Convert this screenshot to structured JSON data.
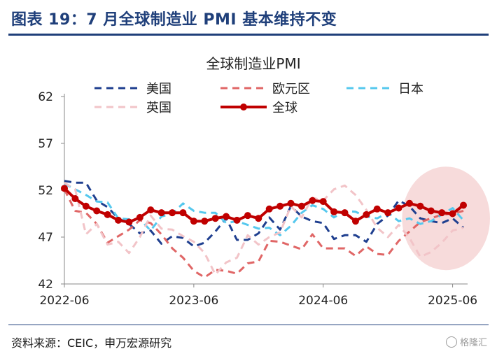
{
  "header": {
    "title": "图表 19：7 月全球制造业 PMI 基本维持不变"
  },
  "footer": {
    "source": "资料来源：CEIC，申万宏源研究",
    "watermark": "格隆汇"
  },
  "chart_data": {
    "type": "line",
    "title": "全球制造业PMI",
    "xlabel": "",
    "ylabel": "",
    "ylim": [
      42,
      62
    ],
    "yticks": [
      42,
      47,
      52,
      57,
      62
    ],
    "x": [
      "2022-06",
      "2022-07",
      "2022-08",
      "2022-09",
      "2022-10",
      "2022-11",
      "2022-12",
      "2023-01",
      "2023-02",
      "2023-03",
      "2023-04",
      "2023-05",
      "2023-06",
      "2023-07",
      "2023-08",
      "2023-09",
      "2023-10",
      "2023-11",
      "2023-12",
      "2024-01",
      "2024-02",
      "2024-03",
      "2024-04",
      "2024-05",
      "2024-06",
      "2024-07",
      "2024-08",
      "2024-09",
      "2024-10",
      "2024-11",
      "2024-12",
      "2025-01",
      "2025-02",
      "2025-03",
      "2025-04",
      "2025-05",
      "2025-06",
      "2025-07"
    ],
    "xticks": [
      "2022-06",
      "2023-06",
      "2024-06",
      "2025-06"
    ],
    "legend_position": "top",
    "highlight_ellipse": {
      "from": "2025-03",
      "to": "2025-07",
      "color": "#f6d5d5"
    },
    "series": [
      {
        "name": "美国",
        "color": "#1f3f8f",
        "dash": "10,7",
        "width": 3,
        "values": [
          53.0,
          52.8,
          52.8,
          50.9,
          50.2,
          49.0,
          48.4,
          47.4,
          47.7,
          46.3,
          47.1,
          46.9,
          46.0,
          46.4,
          47.6,
          49.0,
          46.7,
          46.7,
          47.4,
          49.1,
          47.8,
          50.3,
          49.2,
          48.7,
          48.5,
          46.8,
          47.2,
          47.2,
          46.5,
          48.4,
          49.3,
          50.9,
          50.3,
          49.0,
          48.7,
          48.5,
          49.0,
          48.0
        ]
      },
      {
        "name": "欧元区",
        "color": "#e06666",
        "dash": "10,7",
        "width": 3,
        "values": [
          52.1,
          49.8,
          49.6,
          48.4,
          46.4,
          47.1,
          47.8,
          48.8,
          48.5,
          47.3,
          45.8,
          44.8,
          43.4,
          42.7,
          43.5,
          43.4,
          43.1,
          44.2,
          44.4,
          46.6,
          46.5,
          46.1,
          45.7,
          47.3,
          45.8,
          45.8,
          45.8,
          45.0,
          46.0,
          45.2,
          45.1,
          46.6,
          47.6,
          48.6,
          49.0,
          49.4,
          49.5,
          49.8
        ]
      },
      {
        "name": "日本",
        "color": "#55c8ee",
        "dash": "10,7",
        "width": 3,
        "values": [
          52.7,
          52.1,
          51.5,
          50.8,
          50.7,
          49.0,
          48.9,
          48.9,
          47.7,
          49.2,
          49.5,
          50.6,
          49.8,
          49.6,
          49.6,
          48.5,
          48.7,
          48.3,
          47.9,
          48.0,
          47.2,
          48.2,
          49.6,
          50.4,
          50.0,
          49.1,
          49.8,
          49.7,
          49.2,
          49.0,
          49.6,
          48.7,
          49.0,
          48.4,
          48.7,
          49.4,
          50.1,
          48.8
        ]
      },
      {
        "name": "英国",
        "color": "#f2c4c8",
        "dash": "10,7",
        "width": 3,
        "values": [
          52.8,
          52.1,
          47.3,
          48.4,
          46.2,
          46.5,
          45.3,
          47.0,
          49.3,
          47.9,
          47.8,
          47.1,
          46.5,
          45.3,
          43.0,
          44.3,
          44.8,
          47.2,
          46.2,
          47.0,
          47.5,
          50.3,
          49.1,
          51.2,
          50.9,
          52.1,
          52.5,
          51.5,
          49.9,
          48.0,
          47.0,
          48.3,
          46.9,
          44.9,
          45.4,
          46.4,
          47.7,
          48.0
        ]
      },
      {
        "name": "全球",
        "color": "#c00000",
        "dash": "",
        "width": 4,
        "markers": true,
        "values": [
          52.2,
          51.1,
          50.3,
          49.8,
          49.4,
          48.8,
          48.6,
          49.1,
          49.9,
          49.6,
          49.6,
          49.6,
          48.7,
          48.7,
          49.0,
          49.2,
          48.8,
          49.3,
          49.0,
          50.0,
          50.3,
          50.6,
          50.3,
          50.9,
          50.8,
          49.7,
          49.6,
          48.7,
          49.4,
          50.0,
          49.6,
          50.1,
          50.6,
          50.3,
          49.8,
          49.6,
          49.5,
          50.4
        ]
      }
    ]
  }
}
